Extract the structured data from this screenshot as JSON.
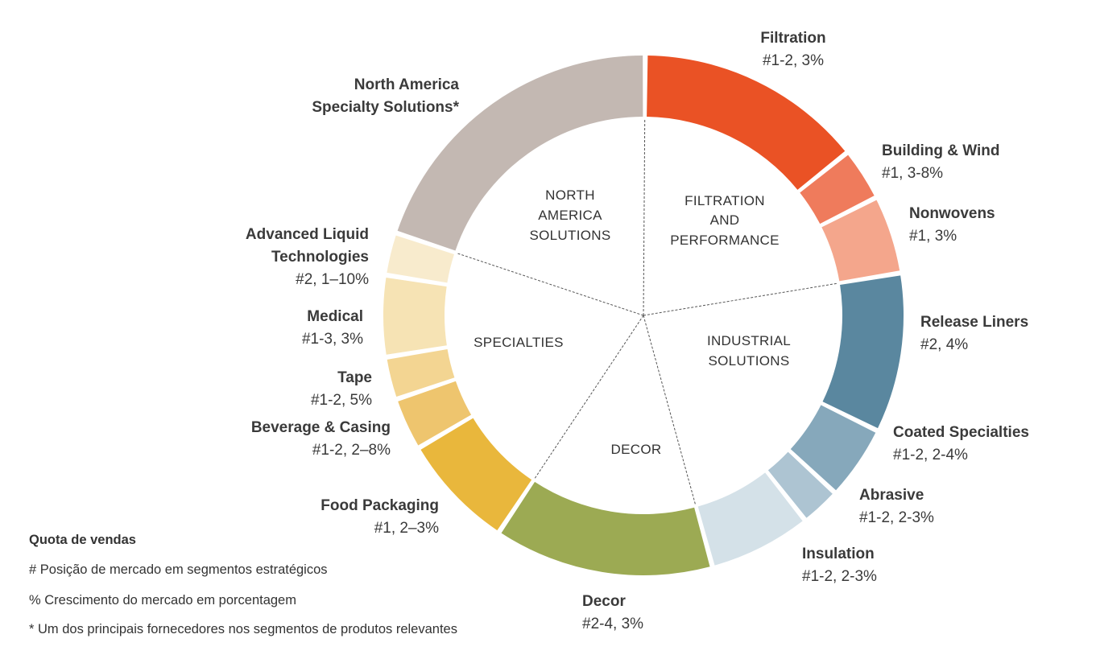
{
  "chart_data": {
    "type": "pie",
    "variant": "donut",
    "segments": [
      {
        "name": "Filtration",
        "value_text": "#1-2, 3%",
        "share": 16,
        "color": "#ea5225"
      },
      {
        "name": "Building  & Wind",
        "value_text": "#1, 3-8%",
        "share": 3.7,
        "color": "#ef7b5c"
      },
      {
        "name": "Nonwovens",
        "value_text": "#1, 3%",
        "share": 5.5,
        "color": "#f4a68c"
      },
      {
        "name": "Release Liners",
        "value_text": "#2, 4%",
        "share": 11.2,
        "color": "#5a879f"
      },
      {
        "name": "Coated Specialties",
        "value_text": "#1-2, 2-4%",
        "share": 5.2,
        "color": "#86a8bb"
      },
      {
        "name": "Abrasive",
        "value_text": "#1-2, 2-3%",
        "share": 2.8,
        "color": "#adc4d2"
      },
      {
        "name": "Insulation",
        "value_text": "#1-2, 2-3%",
        "share": 7.2,
        "color": "#d4e1e8"
      },
      {
        "name": "Decor",
        "value_text": "#2-4, 3%",
        "share": 15.4,
        "color": "#9caa53"
      },
      {
        "name": "Food Packaging",
        "value_text": "#1, 2–3%",
        "share": 8.1,
        "color": "#e9b73c"
      },
      {
        "name": "Beverage & Casing",
        "value_text": "#1-2, 2–8%",
        "share": 3.7,
        "color": "#eec56e"
      },
      {
        "name": "Tape",
        "value_text": "#1-2, 5%",
        "share": 3.0,
        "color": "#f3d592"
      },
      {
        "name": "Medical",
        "value_text": "#1-3, 3%",
        "share": 5.7,
        "color": "#f6e3b4"
      },
      {
        "name": "Advanced Liquid Technologies",
        "value_text": "#2, 1–10%",
        "share": 3.0,
        "color": "#f8ebcd"
      },
      {
        "name": "North America Specialty Solutions*",
        "value_text": "",
        "share": 22.6,
        "color": "#c3b8b2"
      }
    ],
    "groups": [
      {
        "lines": [
          "FILTRATION",
          "AND",
          "PERFORMANCE"
        ],
        "segments": [
          "Filtration",
          "Building  & Wind",
          "Nonwovens"
        ]
      },
      {
        "lines": [
          "INDUSTRIAL",
          "SOLUTIONS"
        ],
        "segments": [
          "Release Liners",
          "Coated Specialties",
          "Abrasive",
          "Insulation"
        ]
      },
      {
        "lines": [
          "DECOR"
        ],
        "segments": [
          "Decor"
        ]
      },
      {
        "lines": [
          "SPECIALTIES"
        ],
        "segments": [
          "Food Packaging",
          "Beverage & Casing",
          "Tape",
          "Medical",
          "Advanced Liquid Technologies"
        ]
      },
      {
        "lines": [
          "NORTH",
          "AMERICA",
          "SOLUTIONS"
        ],
        "segments": [
          "North America Specialty Solutions*"
        ]
      }
    ]
  },
  "legend": {
    "title": "Quota de vendas",
    "line1": "# Posição de mercado em segmentos estratégicos",
    "line2": "% Crescimento do mercado em porcentagem",
    "line3": "* Um  dos  principais  fornecedores  nos  segmentos  de  produtos  relevantes"
  },
  "labels": {
    "filtration": {
      "name": "Filtration",
      "value": "#1-2, 3%"
    },
    "building": {
      "name": "Building  & Wind",
      "value": "#1, 3-8%"
    },
    "nonwovens": {
      "name": "Nonwovens",
      "value": "#1, 3%"
    },
    "release": {
      "name": "Release Liners",
      "value": "#2, 4%"
    },
    "coated": {
      "name": "Coated Specialties",
      "value": "#1-2, 2-4%"
    },
    "abrasive": {
      "name": "Abrasive",
      "value": "#1-2, 2-3%"
    },
    "insulation": {
      "name": "Insulation",
      "value": "#1-2, 2-3%"
    },
    "decor": {
      "name": "Decor",
      "value": "#2-4, 3%"
    },
    "food": {
      "name": "Food Packaging",
      "value": "#1, 2–3%"
    },
    "beverage": {
      "name": "Beverage & Casing",
      "value": "#1-2, 2–8%"
    },
    "tape": {
      "name": "Tape",
      "value": "#1-2, 5%"
    },
    "medical": {
      "name": "Medical",
      "value": "#1-3, 3%"
    },
    "alt": {
      "name1": "Advanced Liquid",
      "name2": "Technologies",
      "value": "#2, 1–10%"
    },
    "nass": {
      "name1": "North America",
      "name2": "Specialty  Solutions*"
    }
  }
}
